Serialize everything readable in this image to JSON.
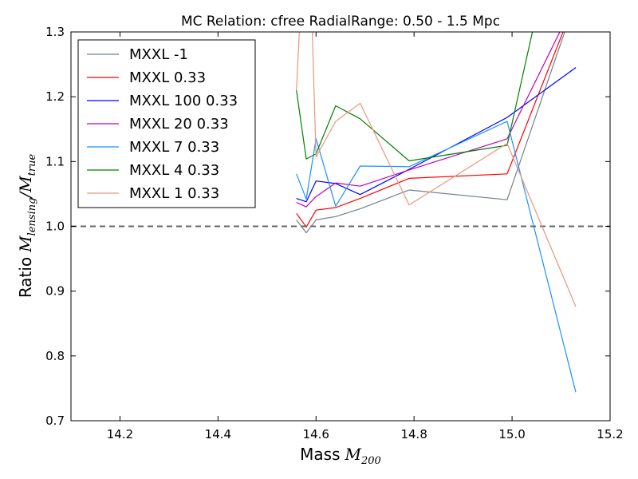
{
  "chart_data": {
    "type": "line",
    "title": "MC Relation: cfree RadialRange: 0.50 - 1.5 Mpc",
    "xlabel": "Mass",
    "xlabel_math": "M",
    "xlabel_sub": "200",
    "ylabel": "Ratio",
    "ylabel_math_num": "M",
    "ylabel_math_num_sub": "lensing",
    "ylabel_math_den": "M",
    "ylabel_math_den_sub": "true",
    "xlim": [
      14.1,
      15.2
    ],
    "ylim": [
      0.7,
      1.3
    ],
    "xticks": [
      "14.2",
      "14.4",
      "14.6",
      "14.8",
      "15.0",
      "15.2"
    ],
    "yticks": [
      "0.7",
      "0.8",
      "0.9",
      "1.0",
      "1.1",
      "1.2",
      "1.3"
    ],
    "reference_line": {
      "y": 1.0,
      "style": "dashed",
      "color": "#666666"
    },
    "legend_position": "top-left",
    "series": [
      {
        "name": "MXXL -1",
        "color": "#708090",
        "x": [
          14.56,
          14.58,
          14.6,
          14.64,
          14.69,
          14.79,
          14.99,
          15.13
        ],
        "y": [
          1.01,
          0.99,
          1.01,
          1.015,
          1.027,
          1.056,
          1.041,
          1.35
        ]
      },
      {
        "name": "MXXL 0.33",
        "color": "#ff0000",
        "x": [
          14.56,
          14.58,
          14.6,
          14.64,
          14.69,
          14.79,
          14.99,
          15.13
        ],
        "y": [
          1.02,
          0.999,
          1.025,
          1.029,
          1.043,
          1.074,
          1.081,
          1.35
        ]
      },
      {
        "name": "MXXL 100 0.33",
        "color": "#0000ff",
        "x": [
          14.56,
          14.58,
          14.6,
          14.64,
          14.69,
          14.79,
          14.99,
          15.13
        ],
        "y": [
          1.043,
          1.038,
          1.07,
          1.066,
          1.049,
          1.088,
          1.168,
          1.245
        ]
      },
      {
        "name": "MXXL 20 0.33",
        "color": "#bf00bf",
        "x": [
          14.56,
          14.58,
          14.6,
          14.64,
          14.69,
          14.79,
          14.99,
          15.13
        ],
        "y": [
          1.037,
          1.03,
          1.046,
          1.067,
          1.062,
          1.087,
          1.135,
          1.35
        ]
      },
      {
        "name": "MXXL 7 0.33",
        "color": "#1e90ff",
        "x": [
          14.56,
          14.58,
          14.6,
          14.64,
          14.69,
          14.79,
          14.99,
          15.13
        ],
        "y": [
          1.081,
          1.042,
          1.135,
          1.031,
          1.093,
          1.092,
          1.162,
          0.744
        ]
      },
      {
        "name": "MXXL 4 0.33",
        "color": "#008000",
        "x": [
          14.56,
          14.58,
          14.6,
          14.64,
          14.69,
          14.79,
          14.99,
          15.13
        ],
        "y": [
          1.21,
          1.104,
          1.112,
          1.186,
          1.166,
          1.101,
          1.125,
          1.6
        ]
      },
      {
        "name": "MXXL 1 0.33",
        "color": "#e9967a",
        "x": [
          14.56,
          14.57,
          14.59,
          14.6,
          14.64,
          14.69,
          14.79,
          14.99,
          15.13
        ],
        "y": [
          1.21,
          1.36,
          1.36,
          1.107,
          1.162,
          1.19,
          1.033,
          1.128,
          0.876
        ]
      }
    ]
  }
}
